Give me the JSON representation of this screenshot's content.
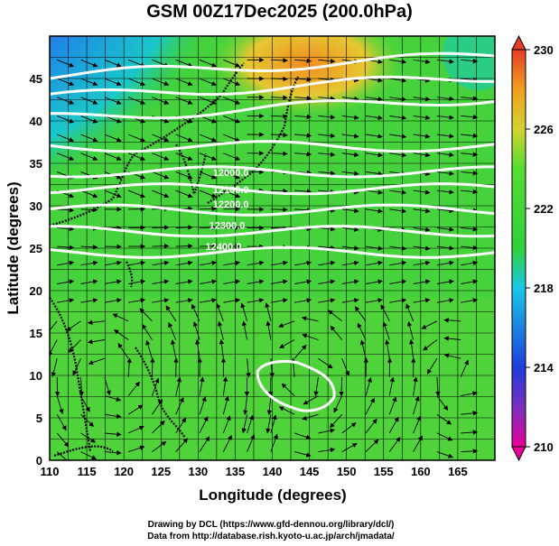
{
  "title": "GSM 00Z17Dec2025 (200.0hPa)",
  "credits": {
    "line1": "Drawing by DCL (https://www.gfd-dennou.org/library/dcl/)",
    "line2": "Data from http://database.rish.kyoto-u.ac.jp/arch/jmadata/"
  },
  "chart_data": {
    "type": "heatmap",
    "title": "GSM 00Z17Dec2025 (200.0hPa)",
    "xlabel": "Longitude (degrees)",
    "ylabel": "Latitude  (degrees)",
    "xlim": [
      110,
      170
    ],
    "ylim": [
      0,
      50
    ],
    "xticks": [
      110,
      115,
      120,
      125,
      130,
      135,
      140,
      145,
      150,
      155,
      160,
      165
    ],
    "yticks": [
      0,
      5,
      10,
      15,
      20,
      25,
      30,
      35,
      40,
      45
    ],
    "grid": true,
    "colorbar": {
      "ticks": [
        210,
        214,
        218,
        222,
        226,
        230
      ],
      "range": [
        210,
        230
      ],
      "colors": [
        "#e60099",
        "#5a32c8",
        "#1e3cdc",
        "#1e9be6",
        "#19dcc8",
        "#2fd03a",
        "#55dc32",
        "#d2d232",
        "#f0a01e",
        "#e63c28"
      ]
    },
    "contour_labels": [
      "12000.0",
      "12100.0",
      "12200.0",
      "12300.0",
      "12400.0"
    ],
    "streamlines": "wind vectors with arrowheads"
  }
}
